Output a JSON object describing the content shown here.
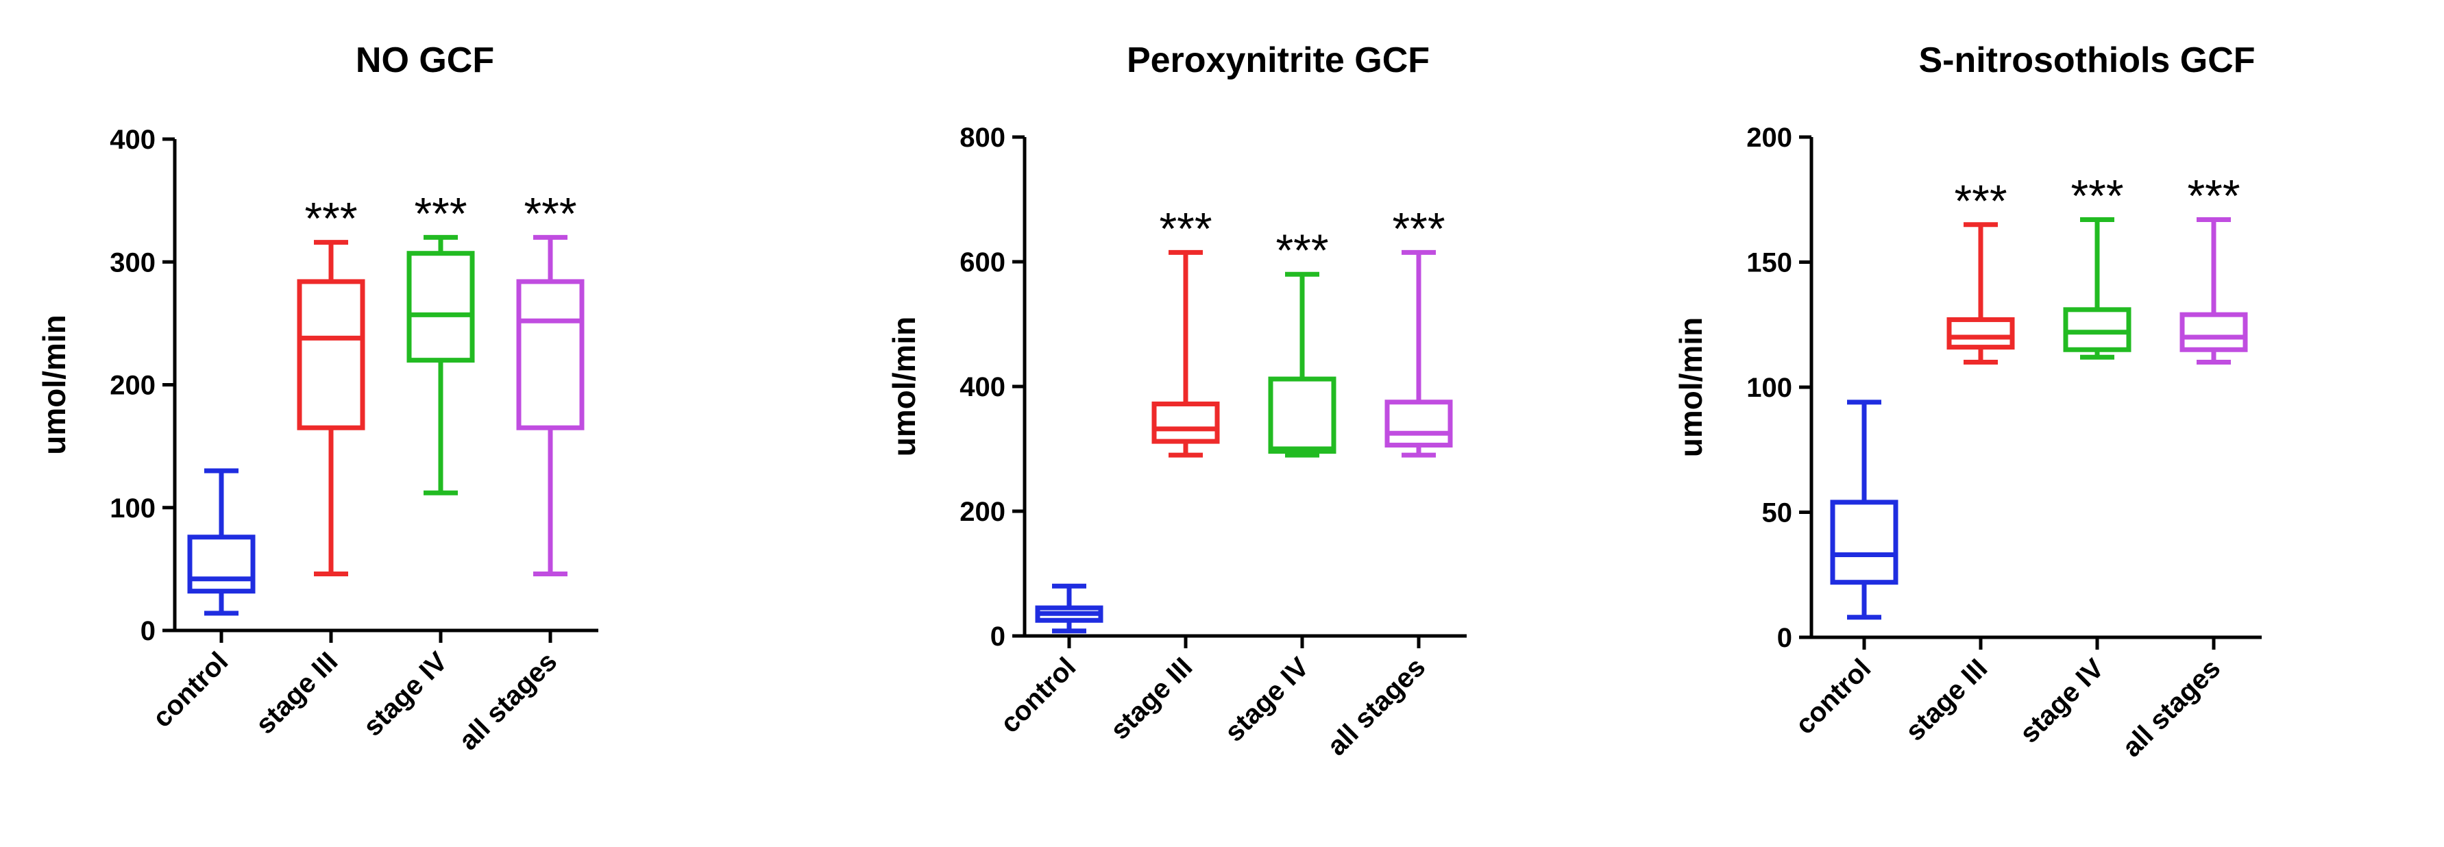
{
  "chart_data": [
    {
      "type": "box",
      "title": "NO GCF",
      "ylabel": "umol/min",
      "ylim": [
        0,
        400
      ],
      "yticks": [
        "0",
        "100",
        "200",
        "300",
        "400"
      ],
      "categories": [
        "control",
        "stage III",
        "stage IV",
        "all stages"
      ],
      "colors": [
        "#1f2de0",
        "#ee2a2a",
        "#22bb22",
        "#c04de0"
      ],
      "annotations": [
        "",
        "***",
        "***",
        "***"
      ],
      "boxes": [
        {
          "min": 14,
          "q1": 32,
          "median": 42,
          "q3": 76,
          "max": 130
        },
        {
          "min": 46,
          "q1": 165,
          "median": 238,
          "q3": 284,
          "max": 316
        },
        {
          "min": 112,
          "q1": 220,
          "median": 257,
          "q3": 307,
          "max": 320
        },
        {
          "min": 46,
          "q1": 165,
          "median": 252,
          "q3": 284,
          "max": 320
        }
      ]
    },
    {
      "type": "box",
      "title": "Peroxynitrite GCF",
      "ylabel": "umol/min",
      "ylim": [
        0,
        800
      ],
      "yticks": [
        "0",
        "200",
        "400",
        "600",
        "800"
      ],
      "categories": [
        "control",
        "stage III",
        "stage IV",
        "all stages"
      ],
      "colors": [
        "#1f2de0",
        "#ee2a2a",
        "#22bb22",
        "#c04de0"
      ],
      "annotations": [
        "",
        "***",
        "***",
        "***"
      ],
      "boxes": [
        {
          "min": 8,
          "q1": 25,
          "median": 36,
          "q3": 45,
          "max": 80
        },
        {
          "min": 290,
          "q1": 312,
          "median": 332,
          "q3": 372,
          "max": 615
        },
        {
          "min": 290,
          "q1": 296,
          "median": 300,
          "q3": 412,
          "max": 580
        },
        {
          "min": 290,
          "q1": 306,
          "median": 325,
          "q3": 375,
          "max": 615
        }
      ]
    },
    {
      "type": "box",
      "title": "S-nitrosothiols GCF",
      "ylabel": "umol/min",
      "ylim": [
        0,
        200
      ],
      "yticks": [
        "0",
        "50",
        "100",
        "150",
        "200"
      ],
      "categories": [
        "control",
        "stage III",
        "stage IV",
        "all stages"
      ],
      "colors": [
        "#1f2de0",
        "#ee2a2a",
        "#22bb22",
        "#c04de0"
      ],
      "annotations": [
        "",
        "***",
        "***",
        "***"
      ],
      "boxes": [
        {
          "min": 8,
          "q1": 22,
          "median": 33,
          "q3": 54,
          "max": 94
        },
        {
          "min": 110,
          "q1": 116,
          "median": 120,
          "q3": 127,
          "max": 165
        },
        {
          "min": 112,
          "q1": 115,
          "median": 122,
          "q3": 131,
          "max": 167
        },
        {
          "min": 110,
          "q1": 115,
          "median": 120,
          "q3": 129,
          "max": 167
        }
      ]
    }
  ]
}
